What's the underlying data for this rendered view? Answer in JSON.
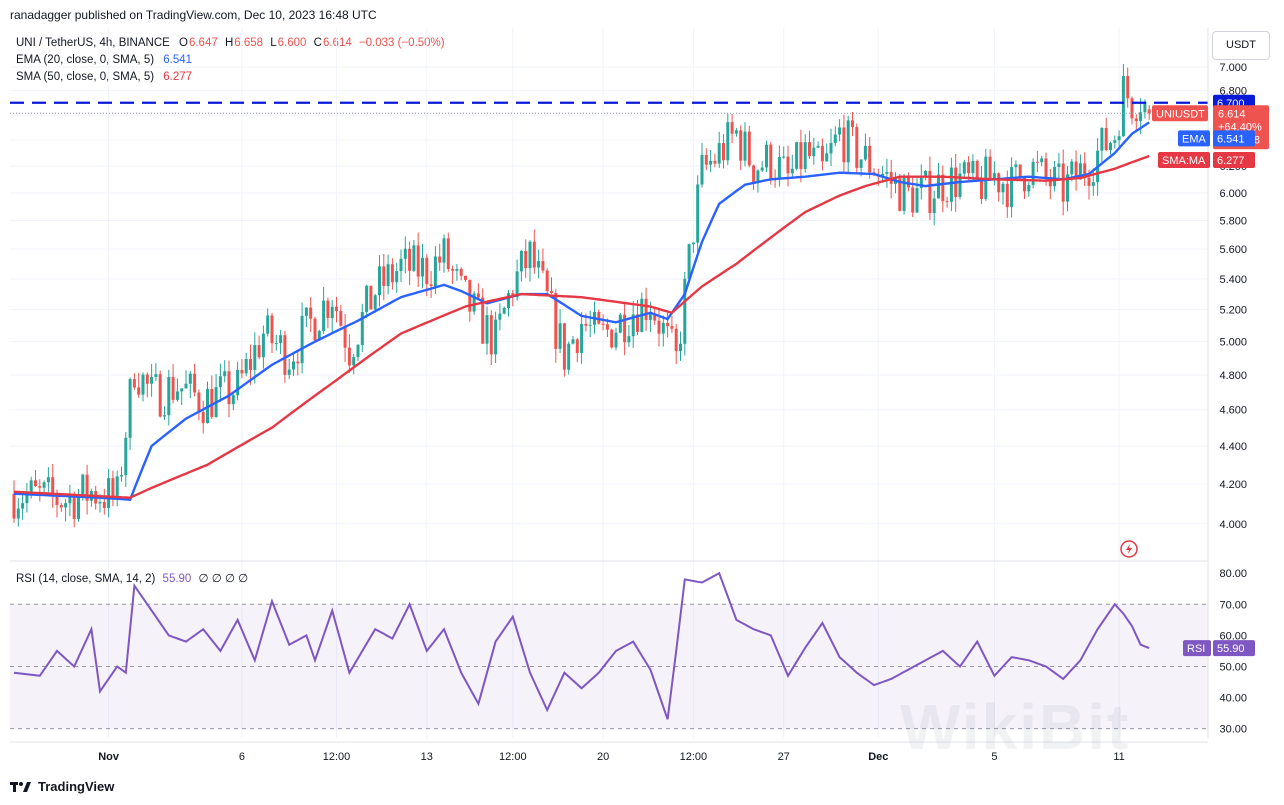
{
  "header": {
    "text": "ranadagger published on TradingView.com, Dec 10, 2023 16:48 UTC"
  },
  "legend": {
    "symbol": "UNI / TetherUS, 4h, BINANCE",
    "o_label": "O",
    "o_val": "6.647",
    "h_label": "H",
    "h_val": "6.658",
    "l_label": "L",
    "l_val": "6.600",
    "c_label": "C",
    "c_val": "6.614",
    "change": "−0.033 (−0.50%)",
    "ema_label": "EMA (20, close, 0, SMA, 5)",
    "ema_val": "6.541",
    "sma_label": "SMA (50, close, 0, SMA, 5)",
    "sma_val": "6.277"
  },
  "rsi_legend": {
    "label": "RSI (14, close, SMA, 14, 2)",
    "val": "55.90",
    "extra": "∅ ∅ ∅ ∅"
  },
  "currency": "USDT",
  "footer": {
    "brand": "TradingView",
    "logo_icon": "tradingview-logo-icon"
  },
  "watermark": "WikiBit",
  "colors": {
    "up": "#26a69a",
    "down": "#ef5350",
    "ema": "#2962ff",
    "sma": "#e53844",
    "rsi": "#7e57c2",
    "level": "#0a1ad9"
  },
  "chart_data": [
    {
      "type": "candlestick",
      "title": "UNI / TetherUS, 4h, BINANCE",
      "x_ticks": [
        "Nov",
        "6",
        "12:00",
        "13",
        "12:00",
        "20",
        "12:00",
        "27",
        "Dec",
        "5",
        "11"
      ],
      "y_ticks": [
        4.0,
        4.2,
        4.4,
        4.6,
        4.8,
        5.0,
        5.2,
        5.4,
        5.6,
        5.8,
        6.0,
        6.2,
        6.4,
        6.6,
        6.8,
        7.0
      ],
      "ylim": [
        3.85,
        7.2
      ],
      "log_scale": true,
      "horizontal_level": 6.7,
      "price_labels": [
        {
          "text": "6.700",
          "value": 6.7,
          "name": "level"
        },
        {
          "text": "UNIUSDT",
          "value": 6.614,
          "name": "symbol",
          "sub": [
            "6.614",
            "+64.40%",
            "03:11:48"
          ]
        },
        {
          "text": "EMA",
          "value": 6.541,
          "name": "ema",
          "val": "6.541"
        },
        {
          "text": "SMA:MA",
          "value": 6.277,
          "name": "sma",
          "val": "6.277"
        }
      ],
      "close_path": [
        [
          0,
          4.15
        ],
        [
          12,
          4.12
        ],
        [
          18,
          4.16
        ],
        [
          24,
          4.13
        ],
        [
          28,
          4.85
        ],
        [
          32,
          4.68
        ],
        [
          38,
          4.74
        ],
        [
          44,
          4.65
        ],
        [
          52,
          4.72
        ],
        [
          58,
          5.05
        ],
        [
          64,
          4.92
        ],
        [
          70,
          5.15
        ],
        [
          74,
          5.3
        ],
        [
          78,
          4.96
        ],
        [
          84,
          5.32
        ],
        [
          90,
          5.48
        ],
        [
          96,
          5.46
        ],
        [
          100,
          5.55
        ],
        [
          104,
          5.3
        ],
        [
          108,
          5.14
        ],
        [
          112,
          5.0
        ],
        [
          116,
          5.36
        ],
        [
          120,
          5.55
        ],
        [
          124,
          5.25
        ],
        [
          128,
          4.92
        ],
        [
          132,
          5.12
        ],
        [
          136,
          5.02
        ],
        [
          140,
          5.1
        ],
        [
          144,
          5.2
        ],
        [
          148,
          5.25
        ],
        [
          152,
          5.0
        ],
        [
          154,
          4.88
        ],
        [
          156,
          5.3
        ],
        [
          158,
          5.75
        ],
        [
          160,
          6.15
        ],
        [
          164,
          6.3
        ],
        [
          168,
          6.45
        ],
        [
          172,
          6.2
        ],
        [
          176,
          6.25
        ],
        [
          180,
          6.1
        ],
        [
          184,
          6.3
        ],
        [
          188,
          6.15
        ],
        [
          192,
          6.45
        ],
        [
          196,
          6.3
        ],
        [
          200,
          6.2
        ],
        [
          204,
          6.08
        ],
        [
          208,
          5.98
        ],
        [
          212,
          6.0
        ],
        [
          216,
          6.08
        ],
        [
          220,
          6.1
        ],
        [
          224,
          6.05
        ],
        [
          228,
          6.13
        ],
        [
          232,
          6.05
        ],
        [
          236,
          6.2
        ],
        [
          240,
          6.1
        ],
        [
          244,
          6.03
        ],
        [
          248,
          6.15
        ],
        [
          252,
          6.3
        ],
        [
          256,
          6.45
        ],
        [
          258,
          6.8
        ],
        [
          260,
          6.72
        ],
        [
          262,
          6.75
        ],
        [
          264,
          6.62
        ]
      ],
      "ema_path": [
        [
          0,
          4.15
        ],
        [
          20,
          4.13
        ],
        [
          27,
          4.12
        ],
        [
          32,
          4.4
        ],
        [
          40,
          4.55
        ],
        [
          50,
          4.68
        ],
        [
          60,
          4.86
        ],
        [
          70,
          5.0
        ],
        [
          80,
          5.13
        ],
        [
          90,
          5.28
        ],
        [
          100,
          5.36
        ],
        [
          104,
          5.32
        ],
        [
          110,
          5.24
        ],
        [
          118,
          5.3
        ],
        [
          124,
          5.3
        ],
        [
          132,
          5.16
        ],
        [
          140,
          5.12
        ],
        [
          148,
          5.18
        ],
        [
          152,
          5.14
        ],
        [
          156,
          5.3
        ],
        [
          160,
          5.65
        ],
        [
          164,
          5.92
        ],
        [
          170,
          6.06
        ],
        [
          176,
          6.1
        ],
        [
          184,
          6.12
        ],
        [
          192,
          6.15
        ],
        [
          200,
          6.14
        ],
        [
          206,
          6.08
        ],
        [
          212,
          6.05
        ],
        [
          220,
          6.08
        ],
        [
          228,
          6.1
        ],
        [
          236,
          6.12
        ],
        [
          244,
          6.1
        ],
        [
          250,
          6.14
        ],
        [
          256,
          6.3
        ],
        [
          260,
          6.45
        ],
        [
          264,
          6.541
        ]
      ],
      "sma_path": [
        [
          0,
          4.16
        ],
        [
          27,
          4.13
        ],
        [
          32,
          4.18
        ],
        [
          45,
          4.3
        ],
        [
          60,
          4.5
        ],
        [
          75,
          4.77
        ],
        [
          90,
          5.05
        ],
        [
          105,
          5.22
        ],
        [
          118,
          5.3
        ],
        [
          132,
          5.28
        ],
        [
          148,
          5.22
        ],
        [
          153,
          5.18
        ],
        [
          160,
          5.35
        ],
        [
          168,
          5.5
        ],
        [
          176,
          5.68
        ],
        [
          184,
          5.86
        ],
        [
          192,
          5.98
        ],
        [
          198,
          6.05
        ],
        [
          206,
          6.12
        ],
        [
          216,
          6.12
        ],
        [
          228,
          6.1
        ],
        [
          240,
          6.09
        ],
        [
          248,
          6.11
        ],
        [
          256,
          6.18
        ],
        [
          264,
          6.277
        ]
      ]
    },
    {
      "type": "line",
      "title": "RSI (14, close, SMA, 14, 2)",
      "y_ticks": [
        30.0,
        40.0,
        50.0,
        60.0,
        70.0,
        80.0
      ],
      "ylim": [
        27,
        82
      ],
      "band": [
        30,
        70
      ],
      "midline": 50,
      "current_label": {
        "text": "RSI",
        "val": "55.90",
        "value": 55.9
      },
      "series": [
        {
          "values_path": [
            [
              0,
              48
            ],
            [
              6,
              47
            ],
            [
              10,
              55
            ],
            [
              14,
              50
            ],
            [
              18,
              62
            ],
            [
              20,
              42
            ],
            [
              24,
              50
            ],
            [
              26,
              48
            ],
            [
              28,
              76
            ],
            [
              32,
              68
            ],
            [
              36,
              60
            ],
            [
              40,
              58
            ],
            [
              44,
              62
            ],
            [
              48,
              55
            ],
            [
              52,
              65
            ],
            [
              56,
              52
            ],
            [
              60,
              71
            ],
            [
              64,
              57
            ],
            [
              68,
              60
            ],
            [
              70,
              52
            ],
            [
              74,
              68
            ],
            [
              78,
              48
            ],
            [
              84,
              62
            ],
            [
              88,
              59
            ],
            [
              92,
              70
            ],
            [
              96,
              55
            ],
            [
              100,
              62
            ],
            [
              104,
              48
            ],
            [
              108,
              38
            ],
            [
              112,
              58
            ],
            [
              116,
              66
            ],
            [
              120,
              48
            ],
            [
              124,
              36
            ],
            [
              128,
              48
            ],
            [
              132,
              43
            ],
            [
              136,
              48
            ],
            [
              140,
              55
            ],
            [
              144,
              58
            ],
            [
              148,
              49
            ],
            [
              152,
              33
            ],
            [
              154,
              55
            ],
            [
              156,
              78
            ],
            [
              160,
              77
            ],
            [
              164,
              80
            ],
            [
              168,
              65
            ],
            [
              172,
              62
            ],
            [
              176,
              60
            ],
            [
              180,
              47
            ],
            [
              184,
              56
            ],
            [
              188,
              64
            ],
            [
              192,
              53
            ],
            [
              196,
              48
            ],
            [
              200,
              44
            ],
            [
              204,
              46
            ],
            [
              208,
              49
            ],
            [
              212,
              52
            ],
            [
              216,
              55
            ],
            [
              220,
              50
            ],
            [
              224,
              58
            ],
            [
              228,
              47
            ],
            [
              232,
              53
            ],
            [
              236,
              52
            ],
            [
              240,
              50
            ],
            [
              244,
              46
            ],
            [
              248,
              52
            ],
            [
              252,
              62
            ],
            [
              256,
              70
            ],
            [
              258,
              67
            ],
            [
              260,
              63
            ],
            [
              262,
              57
            ],
            [
              264,
              55.9
            ]
          ]
        }
      ]
    }
  ]
}
